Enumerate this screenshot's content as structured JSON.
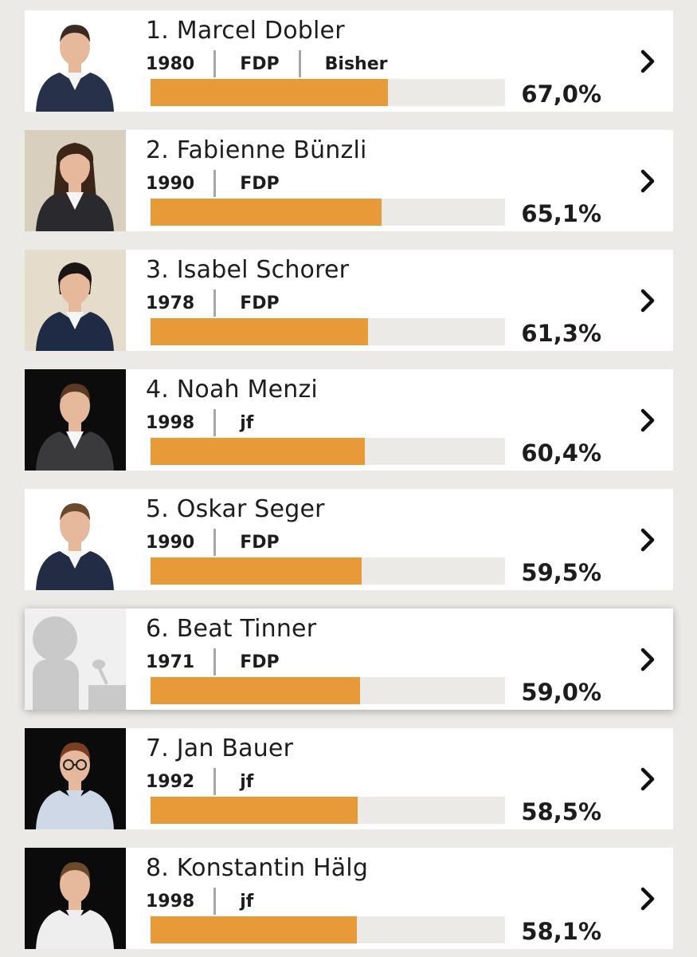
{
  "accent_color": "#e89a38",
  "track_color": "#ebeae6",
  "candidates": [
    {
      "label": "1. Marcel Dobler",
      "year": "1980",
      "party": "FDP",
      "status": "Bisher",
      "percent": "67,0%",
      "share": 0.67,
      "photo": "portrait-man-suit-light",
      "highlight": false
    },
    {
      "label": "2. Fabienne Bünzli",
      "year": "1990",
      "party": "FDP",
      "status": "",
      "percent": "65,1%",
      "share": 0.651,
      "photo": "portrait-woman-long-hair",
      "highlight": false
    },
    {
      "label": "3. Isabel Schorer",
      "year": "1978",
      "party": "FDP",
      "status": "",
      "percent": "61,3%",
      "share": 0.613,
      "photo": "portrait-woman-short-hair",
      "highlight": false
    },
    {
      "label": "4. Noah Menzi",
      "year": "1998",
      "party": "jf",
      "status": "",
      "percent": "60,4%",
      "share": 0.604,
      "photo": "portrait-man-dark",
      "highlight": false
    },
    {
      "label": "5. Oskar Seger",
      "year": "1990",
      "party": "FDP",
      "status": "",
      "percent": "59,5%",
      "share": 0.595,
      "photo": "portrait-man-suit-white",
      "highlight": false
    },
    {
      "label": "6. Beat Tinner",
      "year": "1971",
      "party": "FDP",
      "status": "",
      "percent": "59,0%",
      "share": 0.59,
      "photo": "placeholder-speaker",
      "highlight": true
    },
    {
      "label": "7. Jan Bauer",
      "year": "1992",
      "party": "jf",
      "status": "",
      "percent": "58,5%",
      "share": 0.585,
      "photo": "portrait-man-glasses-dark",
      "highlight": false
    },
    {
      "label": "8. Konstantin Hälg",
      "year": "1998",
      "party": "jf",
      "status": "",
      "percent": "58,1%",
      "share": 0.581,
      "photo": "portrait-man-white-shirt-dark",
      "highlight": false
    }
  ]
}
